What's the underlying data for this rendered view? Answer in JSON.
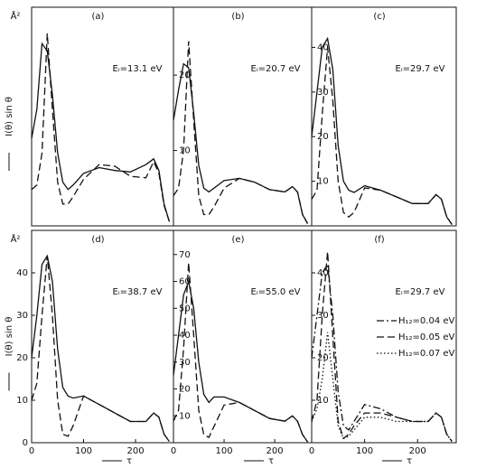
{
  "chart_data": [
    {
      "type": "line",
      "title": "(a)",
      "annotation": "Eᵢ=13.1 eV",
      "yunit": "Å²",
      "ylabel": "I(θ) sin θ",
      "x": [
        0,
        10,
        20,
        30,
        40,
        50,
        60,
        70,
        80,
        100,
        130,
        160,
        190,
        220,
        235,
        245,
        255,
        265
      ],
      "xlim": [
        0,
        273
      ],
      "ylim": [
        0,
        15
      ],
      "yticks": [],
      "series": [
        {
          "color": "#111111",
          "dash": "solid",
          "values": [
            6,
            8,
            12.5,
            12,
            9,
            5,
            3,
            2.5,
            2.8,
            3.6,
            4,
            3.8,
            3.7,
            4.2,
            4.6,
            3.8,
            1.5,
            0.3
          ]
        },
        {
          "color": "#111111",
          "dash": "dashed",
          "values": [
            2.5,
            2.8,
            5,
            13.2,
            8,
            3,
            1.5,
            1.5,
            2,
            3.2,
            4.2,
            4.1,
            3.4,
            3.3,
            4.4,
            3.6,
            1.4,
            0.3
          ]
        }
      ]
    },
    {
      "type": "line",
      "title": "(b)",
      "annotation": "Eᵢ=20.7 eV",
      "x": [
        0,
        10,
        20,
        30,
        40,
        50,
        60,
        70,
        80,
        100,
        130,
        160,
        190,
        220,
        235,
        245,
        255,
        265
      ],
      "xlim": [
        0,
        273
      ],
      "ylim": [
        0,
        29
      ],
      "yticks": [
        10,
        20
      ],
      "series": [
        {
          "color": "#111111",
          "dash": "solid",
          "values": [
            14,
            18,
            21.5,
            21,
            15,
            8,
            5,
            4.5,
            5,
            6,
            6.3,
            5.8,
            4.8,
            4.5,
            5.2,
            4.5,
            1.5,
            0.3
          ]
        },
        {
          "color": "#111111",
          "dash": "dashed",
          "values": [
            4,
            5,
            10,
            24.5,
            14,
            4,
            1.5,
            1.5,
            2.5,
            5,
            6.3,
            5.8,
            4.8,
            4.5,
            5.2,
            4.5,
            1.5,
            0.3
          ]
        }
      ]
    },
    {
      "type": "line",
      "title": "(c)",
      "annotation": "Eᵢ=29.7 eV",
      "x": [
        0,
        10,
        20,
        30,
        40,
        50,
        60,
        70,
        80,
        100,
        130,
        160,
        190,
        220,
        235,
        245,
        255,
        265
      ],
      "xlim": [
        0,
        273
      ],
      "ylim": [
        0,
        49
      ],
      "yticks": [
        10,
        20,
        30,
        40
      ],
      "series": [
        {
          "color": "#111111",
          "dash": "solid",
          "values": [
            20,
            30,
            40,
            42,
            35,
            18,
            10,
            8,
            7.5,
            9,
            8,
            6.5,
            5,
            5,
            7,
            6,
            2,
            0.3
          ]
        },
        {
          "color": "#111111",
          "dash": "dashed",
          "values": [
            6,
            8,
            25,
            40,
            28,
            10,
            3,
            2,
            3,
            8.5,
            8,
            6.5,
            5,
            5,
            7,
            6,
            2,
            0.3
          ]
        }
      ]
    },
    {
      "type": "line",
      "title": "(d)",
      "annotation": "Eᵢ=38.7 eV",
      "yunit": "Å²",
      "ylabel": "I(θ) sin θ",
      "xlabel": "τ",
      "x": [
        0,
        10,
        20,
        30,
        40,
        50,
        60,
        70,
        80,
        100,
        130,
        160,
        190,
        220,
        235,
        245,
        255,
        265
      ],
      "xlim": [
        0,
        273
      ],
      "ylim": [
        0,
        50
      ],
      "yticks": [
        0,
        10,
        20,
        30,
        40
      ],
      "xticks": [
        0,
        100,
        200
      ],
      "series": [
        {
          "color": "#111111",
          "dash": "solid",
          "values": [
            20,
            30,
            42,
            44,
            38,
            22,
            13,
            11,
            10.5,
            11,
            9,
            7,
            5,
            5,
            7,
            6,
            2,
            0.3
          ]
        },
        {
          "color": "#111111",
          "dash": "dashed",
          "values": [
            10,
            14,
            30,
            44,
            30,
            10,
            2,
            1.5,
            4,
            11,
            9,
            7,
            5,
            5,
            7,
            6,
            2,
            0.3
          ]
        }
      ]
    },
    {
      "type": "line",
      "title": "(e)",
      "annotation": "Eᵢ=55.0 eV",
      "xlabel": "τ",
      "x": [
        0,
        10,
        20,
        30,
        40,
        50,
        60,
        70,
        80,
        100,
        130,
        160,
        190,
        220,
        235,
        245,
        255,
        265
      ],
      "xlim": [
        0,
        273
      ],
      "ylim": [
        0,
        79
      ],
      "yticks": [
        10,
        20,
        30,
        40,
        50,
        60,
        70
      ],
      "xticks": [
        0,
        100,
        200
      ],
      "series": [
        {
          "color": "#111111",
          "dash": "solid",
          "values": [
            25,
            40,
            55,
            60,
            50,
            30,
            18,
            15,
            17,
            17,
            15,
            12,
            9,
            8,
            10,
            8,
            3,
            0.3
          ]
        },
        {
          "color": "#111111",
          "dash": "dashed",
          "values": [
            8,
            12,
            35,
            67,
            40,
            12,
            3,
            2,
            6,
            14,
            15,
            12,
            9,
            8,
            10,
            8,
            3,
            0.3
          ]
        }
      ]
    },
    {
      "type": "line",
      "title": "(f)",
      "annotation": "Eᵢ=29.7 eV",
      "xlabel": "τ",
      "x": [
        0,
        10,
        20,
        30,
        40,
        50,
        60,
        70,
        80,
        100,
        130,
        160,
        190,
        220,
        235,
        245,
        255,
        265
      ],
      "xlim": [
        0,
        273
      ],
      "ylim": [
        0,
        50
      ],
      "yticks": [
        10,
        20,
        30,
        40
      ],
      "xticks": [
        0,
        100,
        200
      ],
      "series": [
        {
          "name": "H₁₂=0.04 eV",
          "color": "#111111",
          "dash": "dashdot",
          "values": [
            20,
            30,
            40,
            42,
            30,
            12,
            4,
            3,
            5,
            9,
            8,
            6,
            5,
            5,
            7,
            6,
            2,
            0.3
          ]
        },
        {
          "name": "H₁₂=0.05 eV",
          "color": "#111111",
          "dash": "dashed",
          "values": [
            5,
            10,
            30,
            45,
            25,
            5,
            1,
            2,
            4,
            7,
            7,
            6,
            5,
            5,
            7,
            6,
            2,
            0.3
          ]
        },
        {
          "name": "H₁₂=0.07 eV",
          "color": "#111111",
          "dash": "dotted",
          "values": [
            5,
            8,
            15,
            26,
            15,
            4,
            1,
            1.5,
            3,
            6,
            6,
            5,
            5,
            5,
            7,
            6,
            2,
            0.3
          ]
        }
      ]
    }
  ]
}
